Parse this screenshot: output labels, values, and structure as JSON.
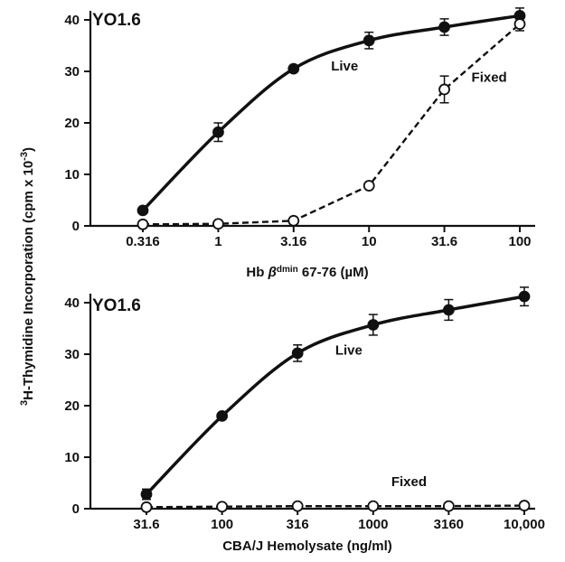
{
  "shared_ylabel_prefix": "3",
  "shared_ylabel": "H-Thymidine Incorporation (cpm x 10",
  "shared_ylabel_exp": "-3",
  "shared_ylabel_suffix": ")",
  "chart_data": [
    {
      "type": "line",
      "panel_label": "YO1.6",
      "xlabel_before": "Hb ",
      "xlabel_beta": "β",
      "xlabel_sup": "dmin",
      "xlabel_after": " 67-76 (µM)",
      "x_scale": "log",
      "x": [
        0.316,
        1,
        3.16,
        10,
        31.6,
        100
      ],
      "x_tick_labels": [
        "0.316",
        "1",
        "3.16",
        "10",
        "31.6",
        "100"
      ],
      "ylim": [
        0,
        40
      ],
      "y_ticks": [
        0,
        10,
        20,
        30,
        40
      ],
      "series": [
        {
          "name": "Live",
          "marker": "filled-circle",
          "style": "solid",
          "values": [
            3,
            18.2,
            30.5,
            36,
            38.6,
            40.8
          ],
          "errors": [
            0,
            1.8,
            0.5,
            1.6,
            1.6,
            1.5
          ]
        },
        {
          "name": "Fixed",
          "marker": "open-circle",
          "style": "dashed",
          "values": [
            0.3,
            0.4,
            1,
            7.8,
            26.5,
            39.2
          ],
          "errors": [
            0,
            0,
            0,
            0,
            2.6,
            1.3
          ]
        }
      ]
    },
    {
      "type": "line",
      "panel_label": "YO1.6",
      "xlabel": "CBA/J Hemolysate (ng/ml)",
      "x_scale": "log",
      "x": [
        31.6,
        100,
        316,
        1000,
        3160,
        10000
      ],
      "x_tick_labels": [
        "31.6",
        "100",
        "316",
        "1000",
        "3160",
        "10,000"
      ],
      "ylim": [
        0,
        40
      ],
      "y_ticks": [
        0,
        10,
        20,
        30,
        40
      ],
      "series": [
        {
          "name": "Live",
          "marker": "filled-circle",
          "style": "solid",
          "values": [
            2.8,
            18,
            30.2,
            35.7,
            38.6,
            41.2
          ],
          "errors": [
            1,
            0,
            1.6,
            2,
            2,
            1.8
          ]
        },
        {
          "name": "Fixed",
          "marker": "open-circle",
          "style": "dashed",
          "values": [
            0.3,
            0.4,
            0.5,
            0.5,
            0.5,
            0.6
          ],
          "errors": [
            0,
            0,
            0,
            0,
            0,
            0
          ]
        }
      ]
    }
  ]
}
